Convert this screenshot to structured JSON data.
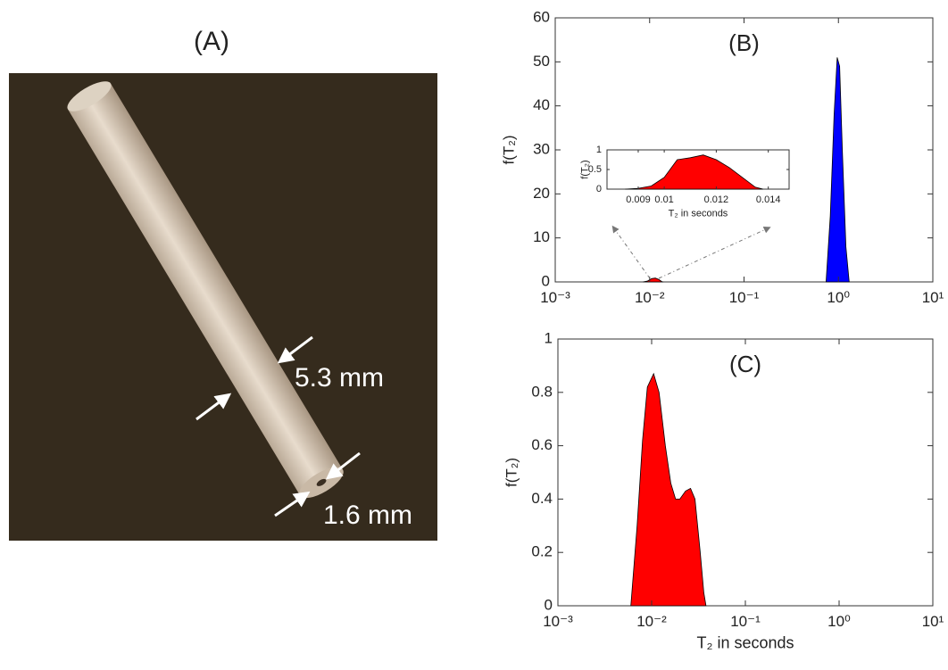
{
  "panel_a": {
    "label": "(A)",
    "annotations": [
      "5.3 mm",
      "1.6 mm"
    ]
  },
  "chart_data": [
    {
      "type": "area",
      "title": "(B)",
      "y_label": "f(T₂)",
      "x_scale": "log",
      "xlim": [
        0.001,
        10
      ],
      "xticks": [
        {
          "value": 0.001,
          "label": "10⁻³"
        },
        {
          "value": 0.01,
          "label": "10⁻²"
        },
        {
          "value": 0.1,
          "label": "10⁻¹"
        },
        {
          "value": 1,
          "label": "10⁰"
        },
        {
          "value": 10,
          "label": "10¹"
        }
      ],
      "ylim": [
        0,
        60
      ],
      "yticks": [
        0,
        10,
        20,
        30,
        40,
        50,
        60
      ],
      "series": [
        {
          "color": "#0000ff",
          "x": [
            0.74,
            0.82,
            0.9,
            0.97,
            1.03,
            1.1,
            1.2,
            1.3
          ],
          "values": [
            0,
            15,
            38,
            51,
            49,
            30,
            8,
            0
          ]
        },
        {
          "color": "#ff0000",
          "x": [
            0.0085,
            0.0095,
            0.0105,
            0.0115,
            0.0125,
            0.0135,
            0.014
          ],
          "values": [
            0,
            0.2,
            0.75,
            0.87,
            0.55,
            0.05,
            0
          ]
        }
      ]
    },
    {
      "type": "area",
      "title": "(C)",
      "x_label": "T₂ in seconds",
      "y_label": "f(T₂)",
      "x_scale": "log",
      "xlim": [
        0.001,
        10
      ],
      "xticks": [
        {
          "value": 0.001,
          "label": "10⁻³"
        },
        {
          "value": 0.01,
          "label": "10⁻²"
        },
        {
          "value": 0.1,
          "label": "10⁻¹"
        },
        {
          "value": 1,
          "label": "10⁰"
        },
        {
          "value": 10,
          "label": "10¹"
        }
      ],
      "ylim": [
        0,
        1
      ],
      "yticks": [
        0,
        0.2,
        0.4,
        0.6,
        0.8,
        1
      ],
      "series": [
        {
          "color": "#ff0000",
          "x": [
            0.006,
            0.007,
            0.008,
            0.009,
            0.0105,
            0.012,
            0.014,
            0.016,
            0.018,
            0.02,
            0.023,
            0.026,
            0.029,
            0.033,
            0.036,
            0.038
          ],
          "values": [
            0,
            0.3,
            0.62,
            0.82,
            0.87,
            0.8,
            0.6,
            0.46,
            0.4,
            0.4,
            0.43,
            0.44,
            0.4,
            0.2,
            0.05,
            0
          ]
        }
      ]
    },
    {
      "type": "area",
      "x_label": "T₂ in seconds",
      "y_label": "f(T₂)",
      "x_scale": "linear",
      "xlim": [
        0.0078,
        0.0148
      ],
      "xticks": [
        0.009,
        0.01,
        0.012,
        0.014
      ],
      "ylim": [
        0,
        1
      ],
      "yticks": [
        0,
        0.5,
        1
      ],
      "series": [
        {
          "color": "#ff0000",
          "x": [
            0.0085,
            0.009,
            0.0095,
            0.01,
            0.0105,
            0.011,
            0.0115,
            0.012,
            0.0125,
            0.013,
            0.0135,
            0.0138
          ],
          "values": [
            0,
            0.02,
            0.08,
            0.3,
            0.75,
            0.8,
            0.87,
            0.75,
            0.55,
            0.3,
            0.05,
            0
          ]
        }
      ]
    }
  ]
}
